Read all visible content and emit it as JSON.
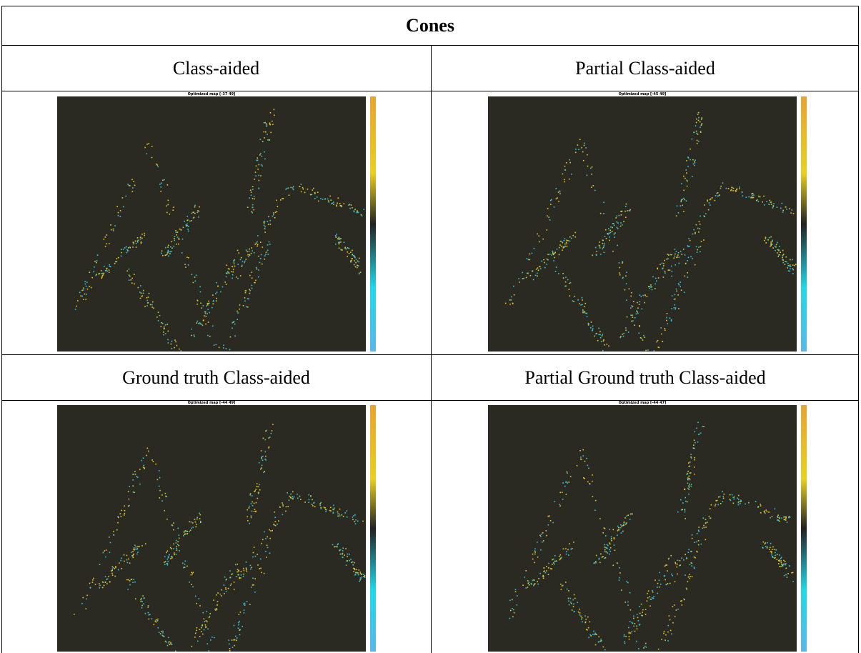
{
  "title": "Cones",
  "table": {
    "rows": [
      [
        {
          "caption": "Class-aided",
          "image_title": "Optimized map [-37 49]"
        },
        {
          "caption": "Partial Class-aided",
          "image_title": "Optimized map [-45 49]"
        }
      ],
      [
        {
          "caption": "Ground truth Class-aided",
          "image_title": "Optimized map [-44 49]"
        },
        {
          "caption": "Partial Ground truth Class-aided",
          "image_title": "Optimized map [-44 47]"
        }
      ]
    ]
  }
}
